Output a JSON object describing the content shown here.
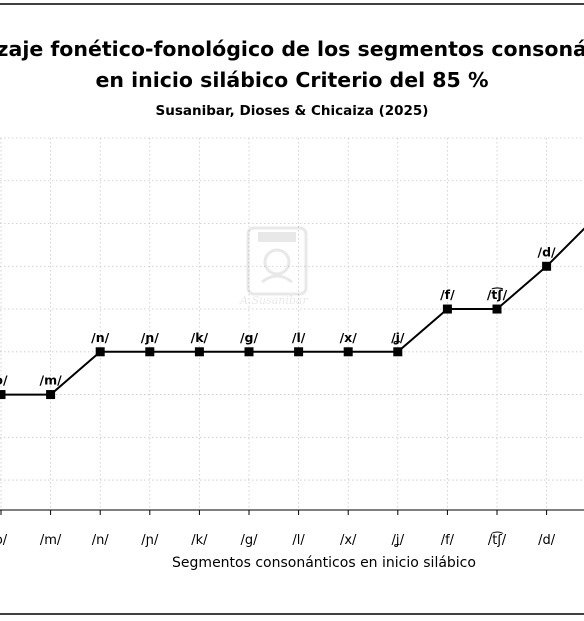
{
  "chart_data": {
    "type": "line",
    "title_line1": "lizaje fonético-fonológico de los segmentos consonán",
    "title_line2": "en inicio silábico Criterio del 85 %",
    "subtitle": "Susanibar, Dioses & Chicaiza (2025)",
    "xlabel": "Segmentos consonánticos en inicio silábico",
    "ylabel": "",
    "categories": [
      "/p/",
      "/m/",
      "/n/",
      "/ɲ/",
      "/k/",
      "/g/",
      "/l/",
      "/x/",
      "/ʝ/",
      "/f/",
      "/t͡ʃ/",
      "/d/"
    ],
    "category_labels": [
      "o/",
      "/m/",
      "/n/",
      "/ɲ/",
      "/k/",
      "/g/",
      "/l/",
      "/x/",
      "/ʝ/",
      "/f/",
      "/t͡ʃ/",
      "/d/"
    ],
    "point_labels": [
      "o/",
      "/m/",
      "/n/",
      "/ɲ/",
      "/k/",
      "/g/",
      "/l/",
      "/x/",
      "/ʝ/",
      "/f/",
      "/t͡ʃ/",
      "/d/"
    ],
    "series": [
      {
        "values": [
          3,
          3,
          4,
          4,
          4,
          4,
          4,
          4,
          4,
          5,
          5,
          6
        ],
        "color": "#000000",
        "marker": "square"
      }
    ],
    "ylim": [
      0.3,
      9
    ],
    "grid": true,
    "grid_style": "dotted",
    "watermark": "A. Susanibar"
  }
}
